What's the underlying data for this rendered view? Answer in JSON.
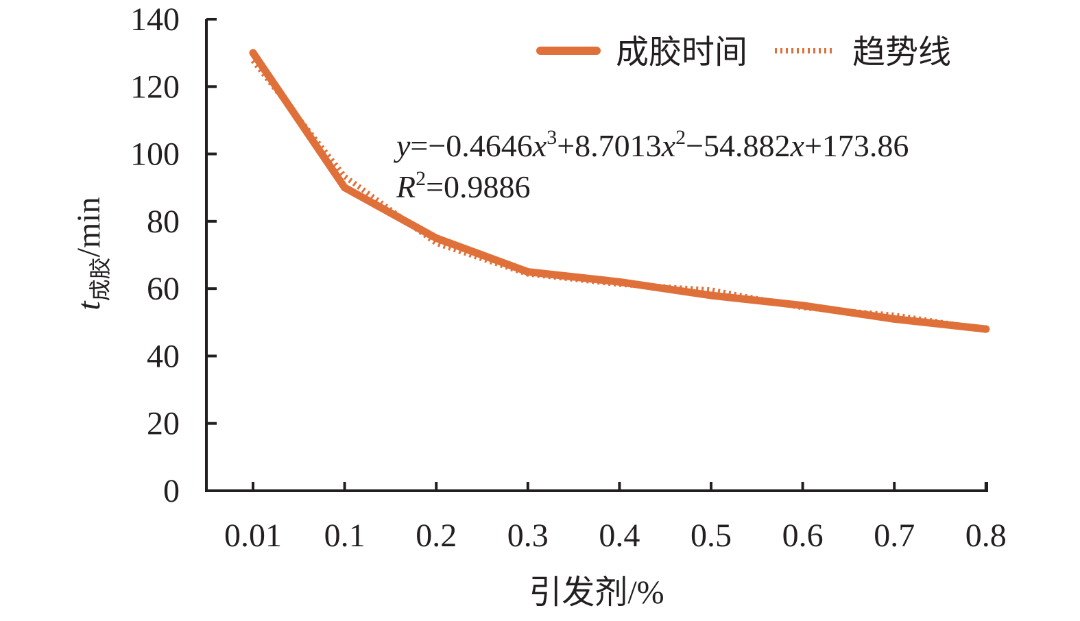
{
  "chart_data": {
    "type": "line",
    "x_axis": {
      "label": "引发剂/%",
      "categories": [
        "0.01",
        "0.1",
        "0.2",
        "0.3",
        "0.4",
        "0.5",
        "0.6",
        "0.7",
        "0.8"
      ]
    },
    "y_axis": {
      "label_main": "t",
      "label_sub": "成胶",
      "label_unit": "/min",
      "ylim": [
        0,
        140
      ],
      "ticks": [
        "0",
        "20",
        "40",
        "60",
        "80",
        "100",
        "120",
        "140"
      ]
    },
    "series": [
      {
        "name": "成胶时间",
        "style": "solid",
        "color": "#e0703a",
        "values": [
          130,
          90,
          75,
          65,
          62,
          58,
          55,
          51,
          48
        ]
      },
      {
        "name": "趋势线",
        "style": "dotted",
        "color": "#e0703a",
        "values": [
          127.69,
          93.34,
          73.48,
          64.38,
          61.33,
          59.58,
          54.41,
          52.1,
          47.9
        ]
      }
    ],
    "legend": {
      "position": "top-right"
    },
    "annotation": {
      "equation": {
        "y": "y",
        "eq1": "=−0.4646",
        "x1": "x",
        "p1": "3",
        "eq2": "+8.7013",
        "x2": "x",
        "p2": "2",
        "eq3": "−54.882",
        "x3": "x",
        "eq4": "+173.86"
      },
      "r2": {
        "r": "R",
        "p": "2",
        "value": "=0.9886"
      }
    },
    "grid": false
  }
}
